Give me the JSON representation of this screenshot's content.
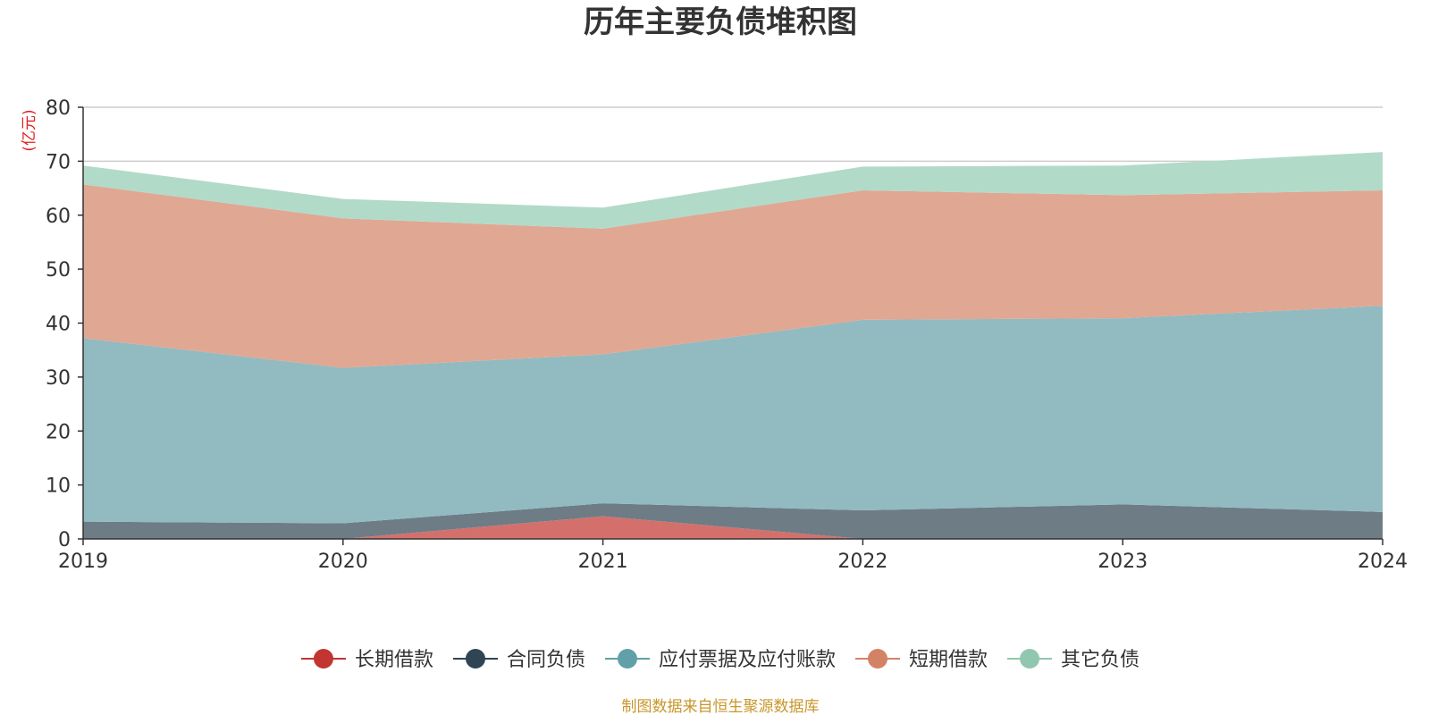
{
  "chart_data": {
    "type": "area",
    "stacked": true,
    "title": "历年主要负债堆积图",
    "unit_label": "(亿元)",
    "x": [
      "2019",
      "2020",
      "2021",
      "2022",
      "2023",
      "2024"
    ],
    "ylim": [
      0,
      80
    ],
    "yticks": [
      0,
      10,
      20,
      30,
      40,
      50,
      60,
      70,
      80
    ],
    "grid": true,
    "legend_position": "bottom",
    "series": [
      {
        "name": "长期借款",
        "color": "#c23531",
        "fill": "#d4706c",
        "values": [
          0,
          0,
          4.2,
          0,
          0,
          0
        ]
      },
      {
        "name": "合同负债",
        "color": "#2f4554",
        "fill": "#6e7c86",
        "values": [
          3.2,
          2.9,
          2.4,
          5.3,
          6.4,
          5.0
        ]
      },
      {
        "name": "应付票据及应付账款",
        "color": "#61a0a8",
        "fill": "#92bac1",
        "values": [
          34.0,
          28.8,
          27.6,
          35.3,
          34.5,
          38.2
        ]
      },
      {
        "name": "短期借款",
        "color": "#d48265",
        "fill": "#e0a793",
        "values": [
          28.5,
          27.7,
          23.3,
          24.0,
          22.8,
          21.4
        ]
      },
      {
        "name": "其它负债",
        "color": "#91c7ae",
        "fill": "#b2dac8",
        "values": [
          3.5,
          3.6,
          3.9,
          4.4,
          5.5,
          7.1
        ]
      }
    ]
  },
  "source": "制图数据来自恒生聚源数据库"
}
